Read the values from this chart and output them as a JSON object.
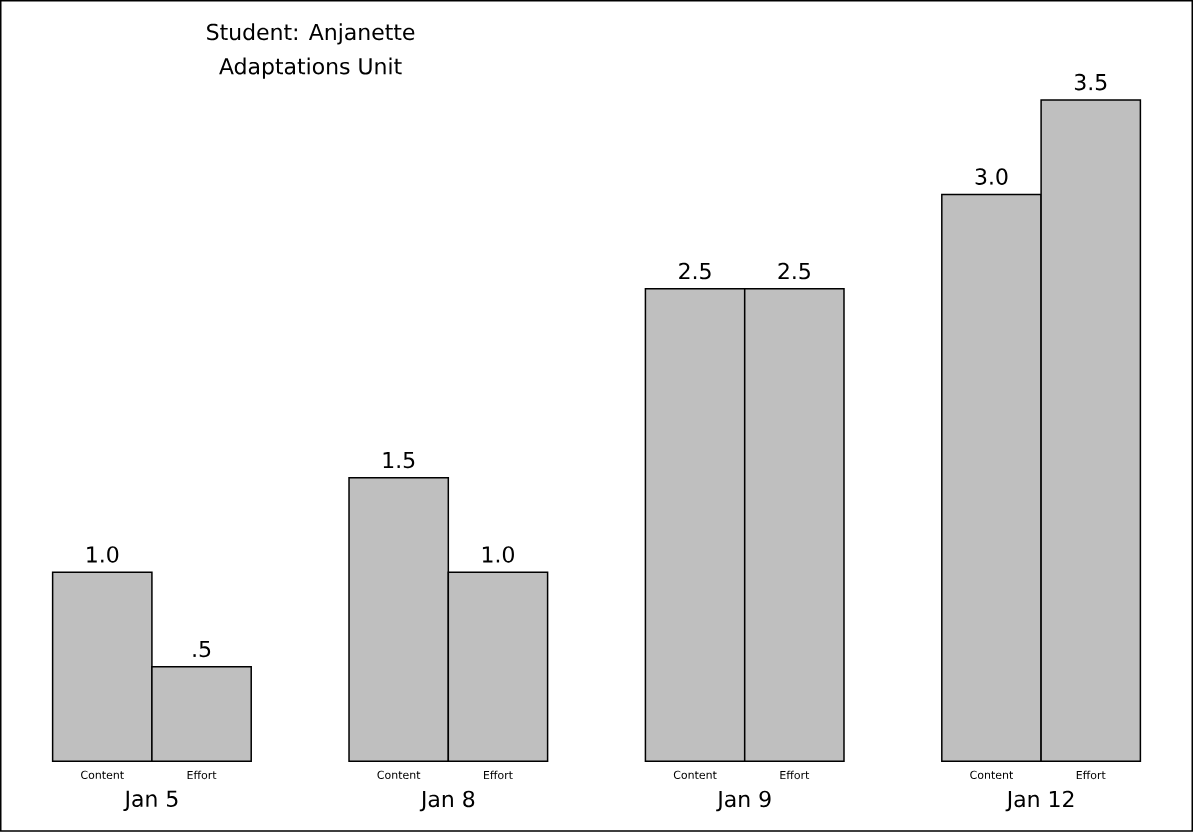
{
  "chart_data": {
    "type": "bar",
    "title": "Student: Anjanette",
    "subtitle": "Adaptations Unit",
    "categories": [
      "Jan 5",
      "Jan 8",
      "Jan 9",
      "Jan 12"
    ],
    "series": [
      {
        "name": "Content",
        "color": "#bfbfbf",
        "values": [
          1.0,
          1.5,
          2.5,
          3.0
        ],
        "value_labels": [
          "1.0",
          "1.5",
          "2.5",
          "3.0"
        ]
      },
      {
        "name": "Effort",
        "color": "#bfbfbf",
        "values": [
          0.5,
          1.0,
          2.5,
          3.5
        ],
        "value_labels": [
          ".5",
          "1.0",
          "2.5",
          "3.5"
        ]
      }
    ]
  }
}
